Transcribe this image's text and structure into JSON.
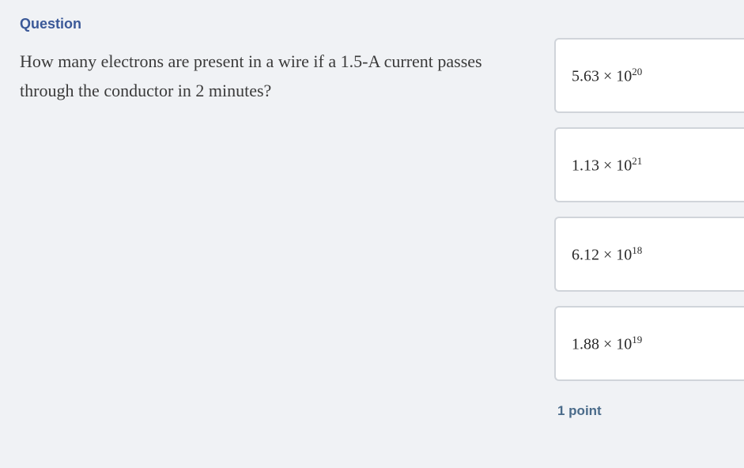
{
  "header": {
    "label": "Question"
  },
  "question": {
    "text": "How many electrons are present in a wire if a 1.5-A current passes through the conductor in 2 minutes?"
  },
  "options": [
    {
      "coefficient": "5.63",
      "exponent": "20"
    },
    {
      "coefficient": "1.13",
      "exponent": "21"
    },
    {
      "coefficient": "6.12",
      "exponent": "18"
    },
    {
      "coefficient": "1.88",
      "exponent": "19"
    }
  ],
  "footer": {
    "points": "1 point"
  },
  "style": {
    "page_bg": "#f0f2f5",
    "option_bg": "#ffffff",
    "option_border": "#d0d4da",
    "header_color": "#3b5998",
    "text_color": "#3a3a3a",
    "footer_color": "#4a6b8a"
  }
}
